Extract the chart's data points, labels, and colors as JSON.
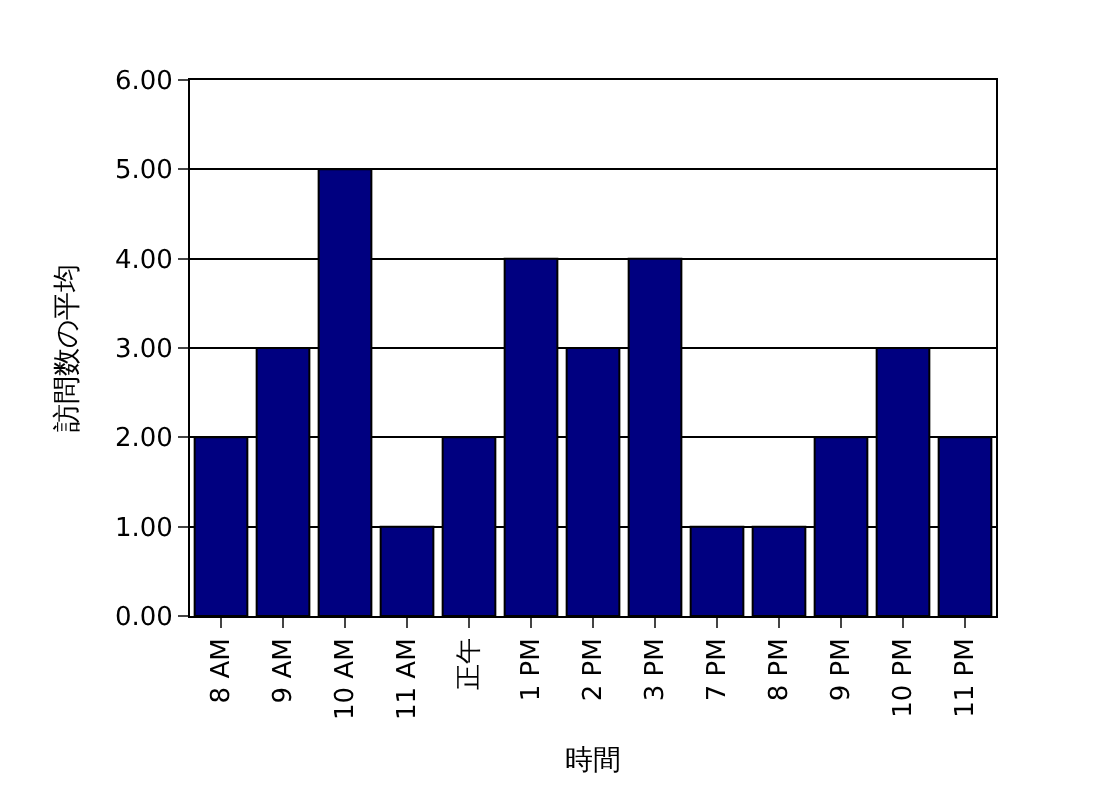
{
  "chart_data": {
    "type": "bar",
    "xlabel": "時間",
    "ylabel": "訪問数の平均",
    "categories": [
      "8 AM",
      "9 AM",
      "10 AM",
      "11 AM",
      "正午",
      "1 PM",
      "2 PM",
      "3 PM",
      "7 PM",
      "8 PM",
      "9 PM",
      "10 PM",
      "11 PM"
    ],
    "values": [
      2,
      3,
      5,
      1,
      2,
      4,
      3,
      4,
      1,
      1,
      2,
      3,
      2
    ],
    "color": "#000080",
    "ylim": [
      0,
      6
    ],
    "yticks": [
      {
        "value": 0,
        "label": "0.00"
      },
      {
        "value": 1,
        "label": "1.00"
      },
      {
        "value": 2,
        "label": "2.00"
      },
      {
        "value": 3,
        "label": "3.00"
      },
      {
        "value": 4,
        "label": "4.00"
      },
      {
        "value": 5,
        "label": "5.00"
      },
      {
        "value": 6,
        "label": "6.00"
      }
    ],
    "grid": "y",
    "legend": false
  }
}
